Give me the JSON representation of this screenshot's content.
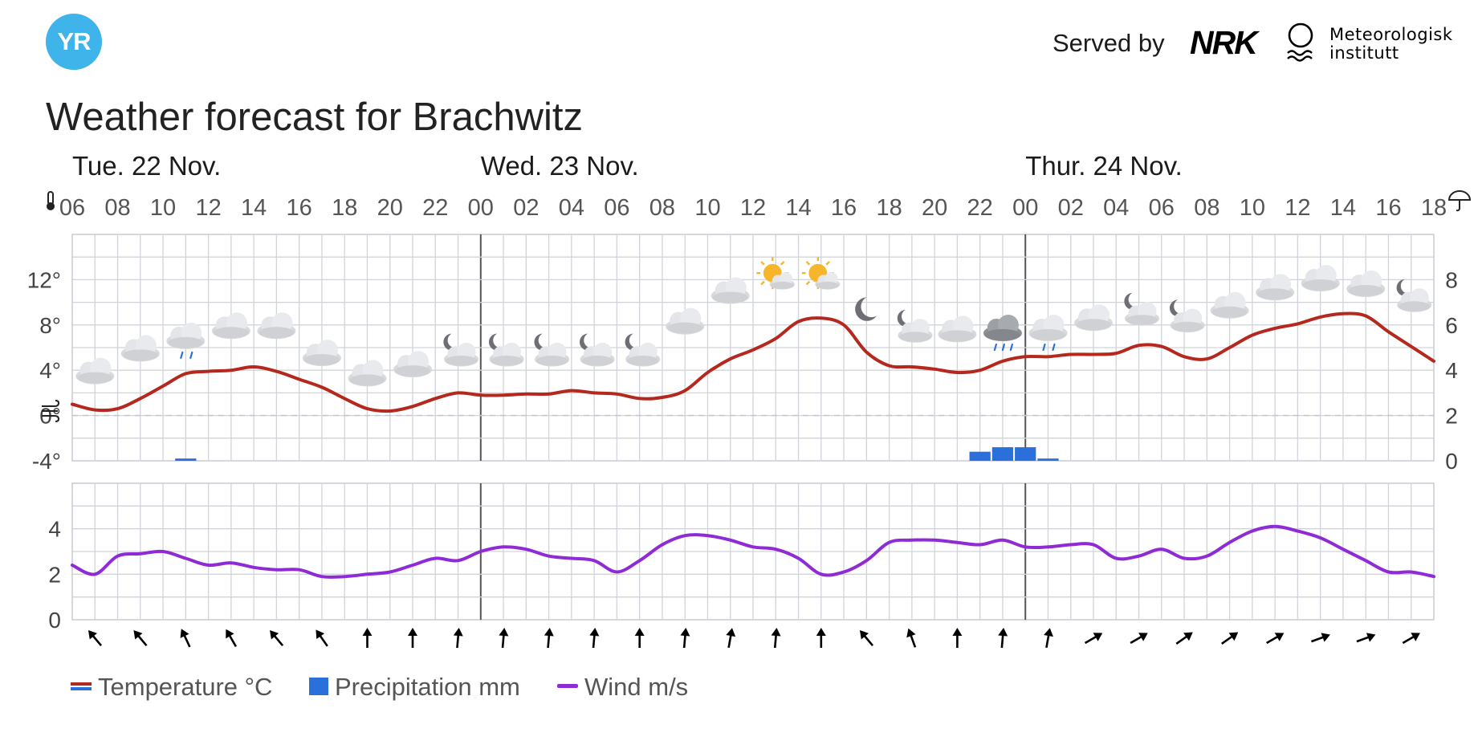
{
  "header": {
    "logo_text": "YR",
    "served_by": "Served by",
    "nrk_logo": "NRK",
    "met_line1": "Meteorologisk",
    "met_line2": "institutt",
    "brand_color": "#3eb4ea"
  },
  "title": "Weather forecast for Brachwitz",
  "chart_data": [
    {
      "type": "line",
      "title": "",
      "days": [
        {
          "label": "Tue. 22 Nov.",
          "start_hour": 6
        },
        {
          "label": "Wed. 23 Nov.",
          "start_hour": 24
        },
        {
          "label": "Thur. 24 Nov.",
          "start_hour": 48
        }
      ],
      "x_tick_labels": [
        "06",
        "08",
        "10",
        "12",
        "14",
        "16",
        "18",
        "20",
        "22",
        "00",
        "02",
        "04",
        "06",
        "08",
        "10",
        "12",
        "14",
        "16",
        "18",
        "20",
        "22",
        "00",
        "02",
        "04",
        "06",
        "08",
        "10",
        "12",
        "14",
        "16",
        "18"
      ],
      "x_tick_hours": [
        6,
        8,
        10,
        12,
        14,
        16,
        18,
        20,
        22,
        24,
        26,
        28,
        30,
        32,
        34,
        36,
        38,
        40,
        42,
        44,
        46,
        48,
        50,
        52,
        54,
        56,
        58,
        60,
        62,
        64,
        66
      ],
      "x_range_hours": [
        6,
        66
      ],
      "grid": true,
      "y_left": {
        "label": "Temperature °C",
        "range": [
          -4,
          16
        ],
        "tick_values": [
          -4,
          0,
          4,
          8,
          12
        ],
        "tick_labels": [
          "-4°",
          "0°",
          "4°",
          "8°",
          "12°"
        ],
        "icon": "thermometer-icon"
      },
      "y_right": {
        "label": "Precipitation mm",
        "range": [
          0,
          10
        ],
        "tick_values": [
          0,
          2,
          4,
          6,
          8
        ],
        "tick_labels": [
          "0",
          "2",
          "4",
          "6",
          "8"
        ],
        "icon": "umbrella-icon"
      },
      "series": [
        {
          "name": "Temperature °C",
          "color": "#b5281e",
          "x": [
            6,
            7,
            8,
            9,
            10,
            11,
            12,
            13,
            14,
            15,
            16,
            17,
            18,
            19,
            20,
            21,
            22,
            23,
            24,
            25,
            26,
            27,
            28,
            29,
            30,
            31,
            32,
            33,
            34,
            35,
            36,
            37,
            38,
            39,
            40,
            41,
            42,
            43,
            44,
            45,
            46,
            47,
            48,
            49,
            50,
            51,
            52,
            53,
            54,
            55,
            56,
            57,
            58,
            59,
            60,
            61,
            62,
            63,
            64,
            65,
            66
          ],
          "y": [
            1.0,
            0.5,
            0.6,
            1.5,
            2.6,
            3.7,
            3.9,
            4.0,
            4.3,
            3.9,
            3.2,
            2.5,
            1.5,
            0.6,
            0.4,
            0.8,
            1.5,
            2.0,
            1.8,
            1.8,
            1.9,
            1.9,
            2.2,
            2.0,
            1.9,
            1.5,
            1.6,
            2.2,
            3.8,
            5.0,
            5.8,
            6.8,
            8.3,
            8.6,
            8.0,
            5.6,
            4.4,
            4.3,
            4.1,
            3.8,
            4.0,
            4.8,
            5.2,
            5.2,
            5.4,
            5.4,
            5.5,
            6.2,
            6.1,
            5.2,
            5.0,
            6.0,
            7.1,
            7.7,
            8.1,
            8.7,
            9.0,
            8.8,
            7.4,
            6.1,
            4.8
          ]
        },
        {
          "name": "Precipitation mm",
          "color": "#2b6fdb",
          "type": "bar",
          "x": [
            11,
            46,
            47,
            48,
            49
          ],
          "y": [
            0.1,
            0.4,
            0.6,
            0.6,
            0.1
          ]
        }
      ],
      "weather_icons": [
        {
          "hour": 7,
          "icon": "cloudy-icon"
        },
        {
          "hour": 9,
          "icon": "cloudy-icon"
        },
        {
          "hour": 11,
          "icon": "light-rain-icon"
        },
        {
          "hour": 13,
          "icon": "cloudy-icon"
        },
        {
          "hour": 15,
          "icon": "cloudy-icon"
        },
        {
          "hour": 17,
          "icon": "cloudy-icon"
        },
        {
          "hour": 19,
          "icon": "cloudy-icon"
        },
        {
          "hour": 21,
          "icon": "cloudy-icon"
        },
        {
          "hour": 23,
          "icon": "partly-cloudy-night-icon"
        },
        {
          "hour": 25,
          "icon": "partly-cloudy-night-icon"
        },
        {
          "hour": 27,
          "icon": "partly-cloudy-night-icon"
        },
        {
          "hour": 29,
          "icon": "partly-cloudy-night-icon"
        },
        {
          "hour": 31,
          "icon": "partly-cloudy-night-icon"
        },
        {
          "hour": 33,
          "icon": "cloudy-icon"
        },
        {
          "hour": 35,
          "icon": "cloudy-icon"
        },
        {
          "hour": 37,
          "icon": "partly-cloudy-day-icon"
        },
        {
          "hour": 39,
          "icon": "partly-cloudy-day-icon"
        },
        {
          "hour": 41,
          "icon": "clear-night-icon"
        },
        {
          "hour": 43,
          "icon": "partly-cloudy-night-icon"
        },
        {
          "hour": 45,
          "icon": "cloudy-icon"
        },
        {
          "hour": 47,
          "icon": "rain-icon"
        },
        {
          "hour": 49,
          "icon": "light-rain-icon"
        },
        {
          "hour": 51,
          "icon": "cloudy-icon"
        },
        {
          "hour": 53,
          "icon": "partly-cloudy-night-icon"
        },
        {
          "hour": 55,
          "icon": "partly-cloudy-night-icon"
        },
        {
          "hour": 57,
          "icon": "cloudy-icon"
        },
        {
          "hour": 59,
          "icon": "cloudy-icon"
        },
        {
          "hour": 61,
          "icon": "cloudy-icon"
        },
        {
          "hour": 63,
          "icon": "cloudy-icon"
        },
        {
          "hour": 65,
          "icon": "partly-cloudy-night-icon"
        }
      ],
      "icon_temps": [
        3.9,
        5.9,
        7.0,
        7.9,
        7.9,
        5.5,
        3.7,
        4.5,
        5.5,
        5.5,
        5.5,
        5.5,
        5.5,
        8.3,
        11.0,
        12.3,
        12.3,
        9.4,
        7.6,
        7.6,
        7.7,
        7.7,
        8.6,
        9.1,
        8.5,
        9.7,
        11.3,
        12.1,
        11.6,
        10.3
      ]
    },
    {
      "type": "line",
      "title": "",
      "y": {
        "label": "Wind m/s",
        "range": [
          0,
          6
        ],
        "tick_values": [
          0,
          2,
          4
        ],
        "tick_labels": [
          "0",
          "2",
          "4"
        ],
        "icon": "wind-icon"
      },
      "series": [
        {
          "name": "Wind m/s",
          "color": "#8f2bd6",
          "x": [
            6,
            7,
            8,
            9,
            10,
            11,
            12,
            13,
            14,
            15,
            16,
            17,
            18,
            19,
            20,
            21,
            22,
            23,
            24,
            25,
            26,
            27,
            28,
            29,
            30,
            31,
            32,
            33,
            34,
            35,
            36,
            37,
            38,
            39,
            40,
            41,
            42,
            43,
            44,
            45,
            46,
            47,
            48,
            49,
            50,
            51,
            52,
            53,
            54,
            55,
            56,
            57,
            58,
            59,
            60,
            61,
            62,
            63,
            64,
            65,
            66
          ],
          "y": [
            2.4,
            2.0,
            2.8,
            2.9,
            3.0,
            2.7,
            2.4,
            2.5,
            2.3,
            2.2,
            2.2,
            1.9,
            1.9,
            2.0,
            2.1,
            2.4,
            2.7,
            2.6,
            3.0,
            3.2,
            3.1,
            2.8,
            2.7,
            2.6,
            2.1,
            2.6,
            3.3,
            3.7,
            3.7,
            3.5,
            3.2,
            3.1,
            2.7,
            2.0,
            2.1,
            2.6,
            3.4,
            3.5,
            3.5,
            3.4,
            3.3,
            3.5,
            3.2,
            3.2,
            3.3,
            3.3,
            2.7,
            2.8,
            3.1,
            2.7,
            2.8,
            3.4,
            3.9,
            4.1,
            3.9,
            3.6,
            3.1,
            2.6,
            2.1,
            2.1,
            1.9
          ]
        }
      ],
      "wind_direction_hours": [
        7,
        9,
        11,
        13,
        15,
        17,
        19,
        21,
        23,
        25,
        27,
        29,
        31,
        33,
        35,
        37,
        39,
        41,
        43,
        45,
        47,
        49,
        51,
        53,
        55,
        57,
        59,
        61,
        63,
        65
      ],
      "wind_arrow_rotation_deg": [
        -40,
        -40,
        -25,
        -30,
        -40,
        -35,
        0,
        0,
        5,
        5,
        5,
        5,
        0,
        5,
        10,
        5,
        0,
        -40,
        -20,
        0,
        5,
        10,
        60,
        60,
        55,
        55,
        60,
        70,
        70,
        60
      ]
    }
  ],
  "legend": [
    {
      "label": "Temperature °C",
      "color": "#b5281e",
      "color2": "#2b6fdb"
    },
    {
      "label": "Precipitation mm",
      "color": "#2b6fdb"
    },
    {
      "label": "Wind m/s",
      "color": "#8f2bd6"
    }
  ]
}
